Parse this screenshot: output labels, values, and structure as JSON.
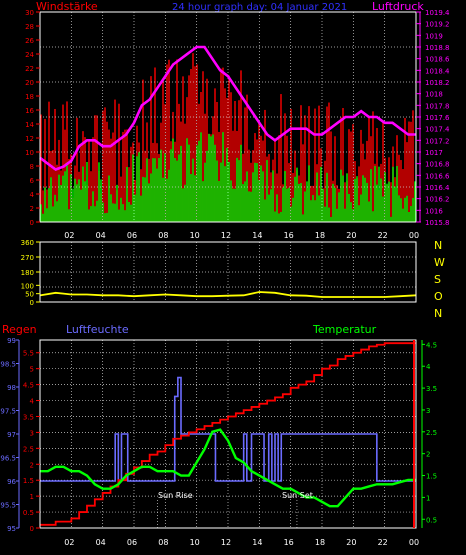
{
  "colors": {
    "background": "#000000",
    "red": "#ff0000",
    "green": "#00ff00",
    "magenta": "#ff00ff",
    "blue": "#6b6bff",
    "yellow": "#ffff00",
    "white": "#ffffff",
    "grid": "#d0d0d0"
  },
  "header": {
    "left": "Windstärke",
    "center": "24 hour graph day: 04 Januar 2021",
    "right": "Luftdruck"
  },
  "dirLabels": [
    "N",
    "W",
    "S",
    "O",
    "N"
  ],
  "bottomHeader": {
    "rain": "Regen",
    "humidity": "Luftfeuchte",
    "temperature": "Temperatur"
  },
  "annotations": {
    "sunrise": "Sun Rise",
    "sunset": "Sun Set"
  },
  "chart_data": [
    {
      "type": "bar",
      "title": "24 hour graph day: 04 Januar 2021",
      "xTicks": [
        "02",
        "04",
        "06",
        "08",
        "10",
        "12",
        "14",
        "16",
        "18",
        "20",
        "22",
        "00"
      ],
      "leftAxis": {
        "label": "Windstärke",
        "ticks": [
          0,
          2,
          4,
          6,
          8,
          10,
          12,
          14,
          16,
          18,
          20,
          22,
          24,
          26,
          28,
          30
        ],
        "ylim": [
          0,
          30
        ]
      },
      "rightAxis": {
        "label": "Luftdruck",
        "ticks": [
          "1015.8",
          "1016",
          "1016.2",
          "1016.4",
          "1016.6",
          "1016.8",
          "1017",
          "1017.2",
          "1017.4",
          "1017.6",
          "1017.8",
          "1018",
          "1018.2",
          "1018.4",
          "1018.6",
          "1018.8",
          "1019",
          "1019.2",
          "1019.4"
        ],
        "ylim": [
          1015.8,
          1019.4
        ]
      },
      "series": [
        {
          "name": "Luftdruck",
          "type": "line",
          "x": [
            0,
            0.5,
            1,
            1.5,
            2,
            2.5,
            3,
            3.5,
            4,
            4.5,
            5,
            5.5,
            6,
            6.5,
            7,
            7.5,
            8,
            8.5,
            9,
            9.5,
            10,
            10.5,
            11,
            11.5,
            12,
            12.5,
            13,
            13.5,
            14,
            14.5,
            15,
            15.5,
            16,
            16.5,
            17,
            17.5,
            18,
            18.5,
            19,
            19.5,
            20,
            20.5,
            21,
            21.5,
            22,
            22.5,
            23,
            23.5,
            24
          ],
          "y": [
            1016.9,
            1016.8,
            1016.7,
            1016.75,
            1016.85,
            1017.1,
            1017.2,
            1017.2,
            1017.1,
            1017.1,
            1017.2,
            1017.3,
            1017.5,
            1017.8,
            1017.9,
            1018.1,
            1018.3,
            1018.5,
            1018.6,
            1018.7,
            1018.8,
            1018.8,
            1018.6,
            1018.4,
            1018.3,
            1018.1,
            1017.9,
            1017.7,
            1017.5,
            1017.3,
            1017.2,
            1017.3,
            1017.4,
            1017.4,
            1017.4,
            1017.3,
            1017.3,
            1017.4,
            1017.5,
            1017.6,
            1017.6,
            1017.7,
            1017.6,
            1017.6,
            1017.5,
            1017.5,
            1017.4,
            1017.3,
            1017.3
          ]
        }
      ]
    },
    {
      "type": "line",
      "yTicks": [
        0,
        50,
        100,
        180,
        270,
        360
      ],
      "ylim": [
        0,
        360
      ],
      "series": [
        {
          "name": "Windrichtung",
          "x": [
            0,
            1,
            1.5,
            2,
            3,
            4,
            5,
            6,
            7,
            8,
            9,
            10,
            11,
            12,
            13,
            14,
            15,
            16,
            17,
            18,
            19,
            20,
            21,
            22,
            23,
            24
          ],
          "y": [
            40,
            55,
            50,
            45,
            45,
            40,
            40,
            35,
            40,
            45,
            40,
            35,
            35,
            38,
            40,
            60,
            55,
            40,
            38,
            30,
            30,
            30,
            30,
            30,
            35,
            40
          ]
        }
      ]
    },
    {
      "type": "line",
      "xTicks": [
        "02",
        "04",
        "06",
        "08",
        "10",
        "12",
        "14",
        "16",
        "18",
        "20",
        "22",
        "00"
      ],
      "rainAxis": {
        "label": "Regen",
        "ticks": [
          "0",
          "0.5",
          "1",
          "1.5",
          "2",
          "2.5",
          "3",
          "3.5",
          "4",
          "4.5",
          "5",
          "5.5"
        ],
        "ylim": [
          0,
          5.9
        ]
      },
      "humidityAxis": {
        "label": "Luftfeuchte",
        "ticks": [
          "95",
          "95.5",
          "96",
          "96.5",
          "97",
          "97.5",
          "98",
          "98.5",
          "99"
        ],
        "ylim": [
          95,
          99
        ]
      },
      "temperatureAxis": {
        "label": "Temperatur",
        "ticks": [
          "0.5",
          "1",
          "1.5",
          "2",
          "2.5",
          "3",
          "3.5",
          "4",
          "4.5"
        ],
        "ylim": [
          0.3,
          4.6
        ]
      },
      "series": [
        {
          "name": "Regen",
          "x": [
            0,
            0.5,
            1,
            1.5,
            2,
            2.5,
            3,
            3.5,
            4,
            4.5,
            5,
            5.5,
            6,
            6.5,
            7,
            7.5,
            8,
            8.5,
            9,
            9.5,
            10,
            10.5,
            11,
            11.5,
            12,
            12.5,
            13,
            13.5,
            14,
            14.5,
            15,
            15.5,
            16,
            16.5,
            17,
            17.5,
            18,
            18.5,
            19,
            19.5,
            20,
            20.5,
            21,
            21.5,
            22,
            22.5,
            23,
            23.5,
            24
          ],
          "y": [
            0.1,
            0.1,
            0.2,
            0.2,
            0.3,
            0.5,
            0.7,
            0.9,
            1.1,
            1.3,
            1.5,
            1.7,
            1.9,
            2.1,
            2.3,
            2.4,
            2.6,
            2.8,
            2.9,
            3.0,
            3.1,
            3.2,
            3.3,
            3.4,
            3.5,
            3.6,
            3.7,
            3.8,
            3.9,
            4.0,
            4.1,
            4.2,
            4.4,
            4.5,
            4.6,
            4.8,
            5.0,
            5.1,
            5.3,
            5.4,
            5.5,
            5.6,
            5.7,
            5.75,
            5.8,
            5.8,
            5.8,
            5.8,
            5.8
          ]
        },
        {
          "name": "Luftfeuchte",
          "x": [
            0,
            4.8,
            4.8,
            5.0,
            5.0,
            5.2,
            5.2,
            5.6,
            5.6,
            8.6,
            8.6,
            8.8,
            8.8,
            9.0,
            9.0,
            11.2,
            11.2,
            13.0,
            13.0,
            13.2,
            13.2,
            13.5,
            13.5,
            14.3,
            14.3,
            14.6,
            14.6,
            14.8,
            14.8,
            15.0,
            15.0,
            15.2,
            15.2,
            15.4,
            15.4,
            21.5,
            21.5,
            24
          ],
          "y": [
            96,
            96,
            97,
            97,
            96,
            96,
            97,
            97,
            96,
            96,
            97.8,
            97.8,
            98.2,
            98.2,
            97,
            97,
            96,
            96,
            97,
            97,
            96,
            96,
            97,
            97,
            96,
            96,
            97,
            97,
            96,
            96,
            97,
            97,
            96,
            96,
            97,
            97,
            96,
            96
          ]
        },
        {
          "name": "Temperatur",
          "x": [
            0,
            0.5,
            1,
            1.5,
            2,
            2.5,
            3,
            3.5,
            4,
            4.5,
            5,
            5.5,
            6,
            6.5,
            7,
            7.5,
            8,
            8.5,
            9,
            9.5,
            10,
            10.5,
            11,
            11.5,
            12,
            12.5,
            13,
            13.5,
            14,
            14.5,
            15,
            15.5,
            16,
            16.5,
            17,
            17.5,
            18,
            18.5,
            19,
            19.5,
            20,
            20.5,
            21,
            21.5,
            22,
            22.5,
            23,
            23.5,
            24
          ],
          "y": [
            1.6,
            1.6,
            1.7,
            1.7,
            1.6,
            1.6,
            1.5,
            1.3,
            1.2,
            1.2,
            1.3,
            1.5,
            1.6,
            1.7,
            1.7,
            1.6,
            1.6,
            1.6,
            1.5,
            1.5,
            1.8,
            2.1,
            2.5,
            2.55,
            2.3,
            1.9,
            1.8,
            1.6,
            1.5,
            1.4,
            1.3,
            1.2,
            1.2,
            1.1,
            1.0,
            1.0,
            0.9,
            0.8,
            0.8,
            1.0,
            1.2,
            1.2,
            1.25,
            1.3,
            1.3,
            1.3,
            1.35,
            1.4,
            1.4
          ]
        }
      ]
    }
  ]
}
